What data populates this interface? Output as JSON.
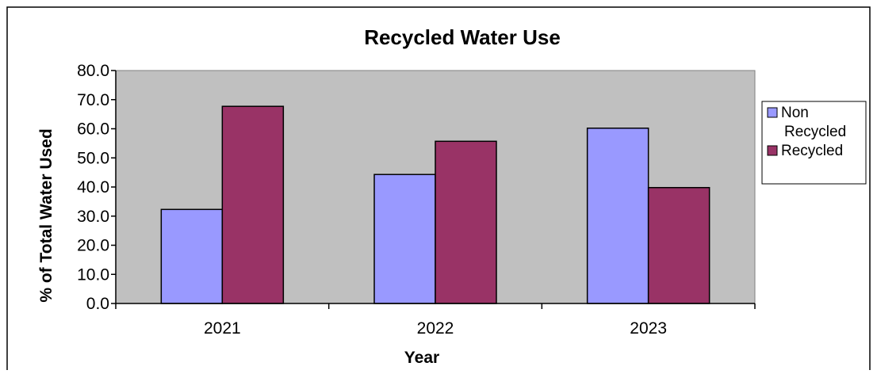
{
  "chart_data": {
    "type": "bar",
    "title": "Recycled Water Use",
    "xlabel": "Year",
    "ylabel": "% of Total Water Used",
    "categories": [
      "2021",
      "2022",
      "2023"
    ],
    "ylim": [
      0,
      80
    ],
    "yticks": [
      "0.0",
      "10.0",
      "20.0",
      "30.0",
      "40.0",
      "50.0",
      "60.0",
      "70.0",
      "80.0"
    ],
    "grid": false,
    "legend_position": "right",
    "plot_background": "#c0c0c0",
    "series": [
      {
        "name": "Non Recycled",
        "legend_lines": [
          "Non",
          "Recycled"
        ],
        "color": "#9999ff",
        "values": [
          32.3,
          44.3,
          60.2
        ]
      },
      {
        "name": "Recycled",
        "legend_lines": [
          "Recycled"
        ],
        "color": "#993366",
        "values": [
          67.7,
          55.7,
          39.8
        ]
      }
    ]
  }
}
